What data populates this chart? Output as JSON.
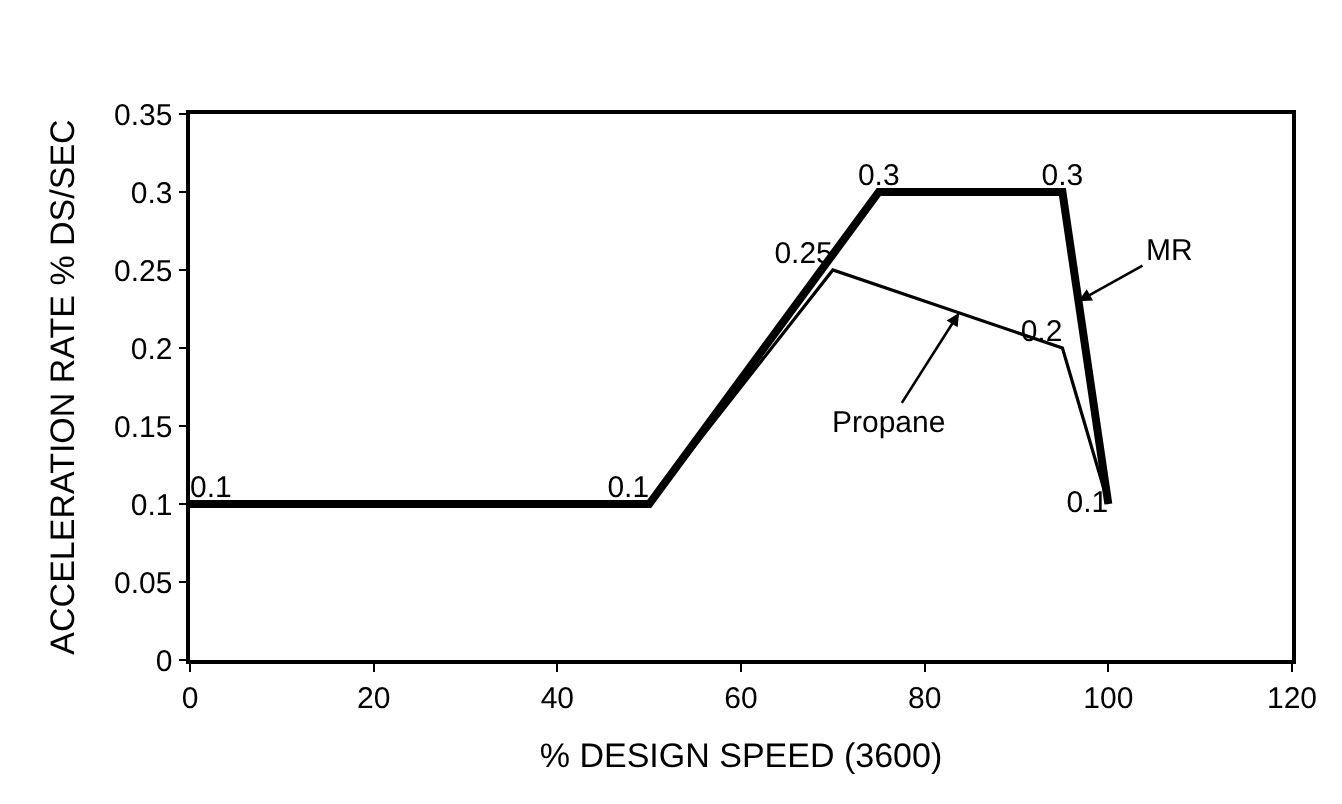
{
  "chart_data": {
    "type": "line",
    "xlabel": "% DESIGN SPEED (3600)",
    "ylabel": "ACCELERATION RATE % DS/SEC",
    "x": [
      0,
      50,
      75,
      95,
      100
    ],
    "series": [
      {
        "name": "MR",
        "color": "#000000",
        "values": [
          0.1,
          0.1,
          0.3,
          0.3,
          0.1
        ],
        "value_labels": [
          "0.1",
          "0.1",
          "0.3",
          "0.3",
          "0.1"
        ]
      },
      {
        "name": "Propane",
        "color": "#000000",
        "x": [
          0,
          50,
          70,
          95,
          100
        ],
        "values": [
          0.1,
          0.1,
          0.25,
          0.2,
          0.1
        ],
        "value_labels": [
          null,
          null,
          "0.25",
          "0.2",
          null
        ]
      }
    ],
    "xlim": [
      0,
      120
    ],
    "xticks": [
      0,
      20,
      40,
      60,
      80,
      100,
      120
    ],
    "ylim": [
      0,
      0.35
    ],
    "yticks": [
      0,
      0.05,
      0.1,
      0.15,
      0.2,
      0.25,
      0.3,
      0.35
    ],
    "grid": false,
    "legend": false
  }
}
